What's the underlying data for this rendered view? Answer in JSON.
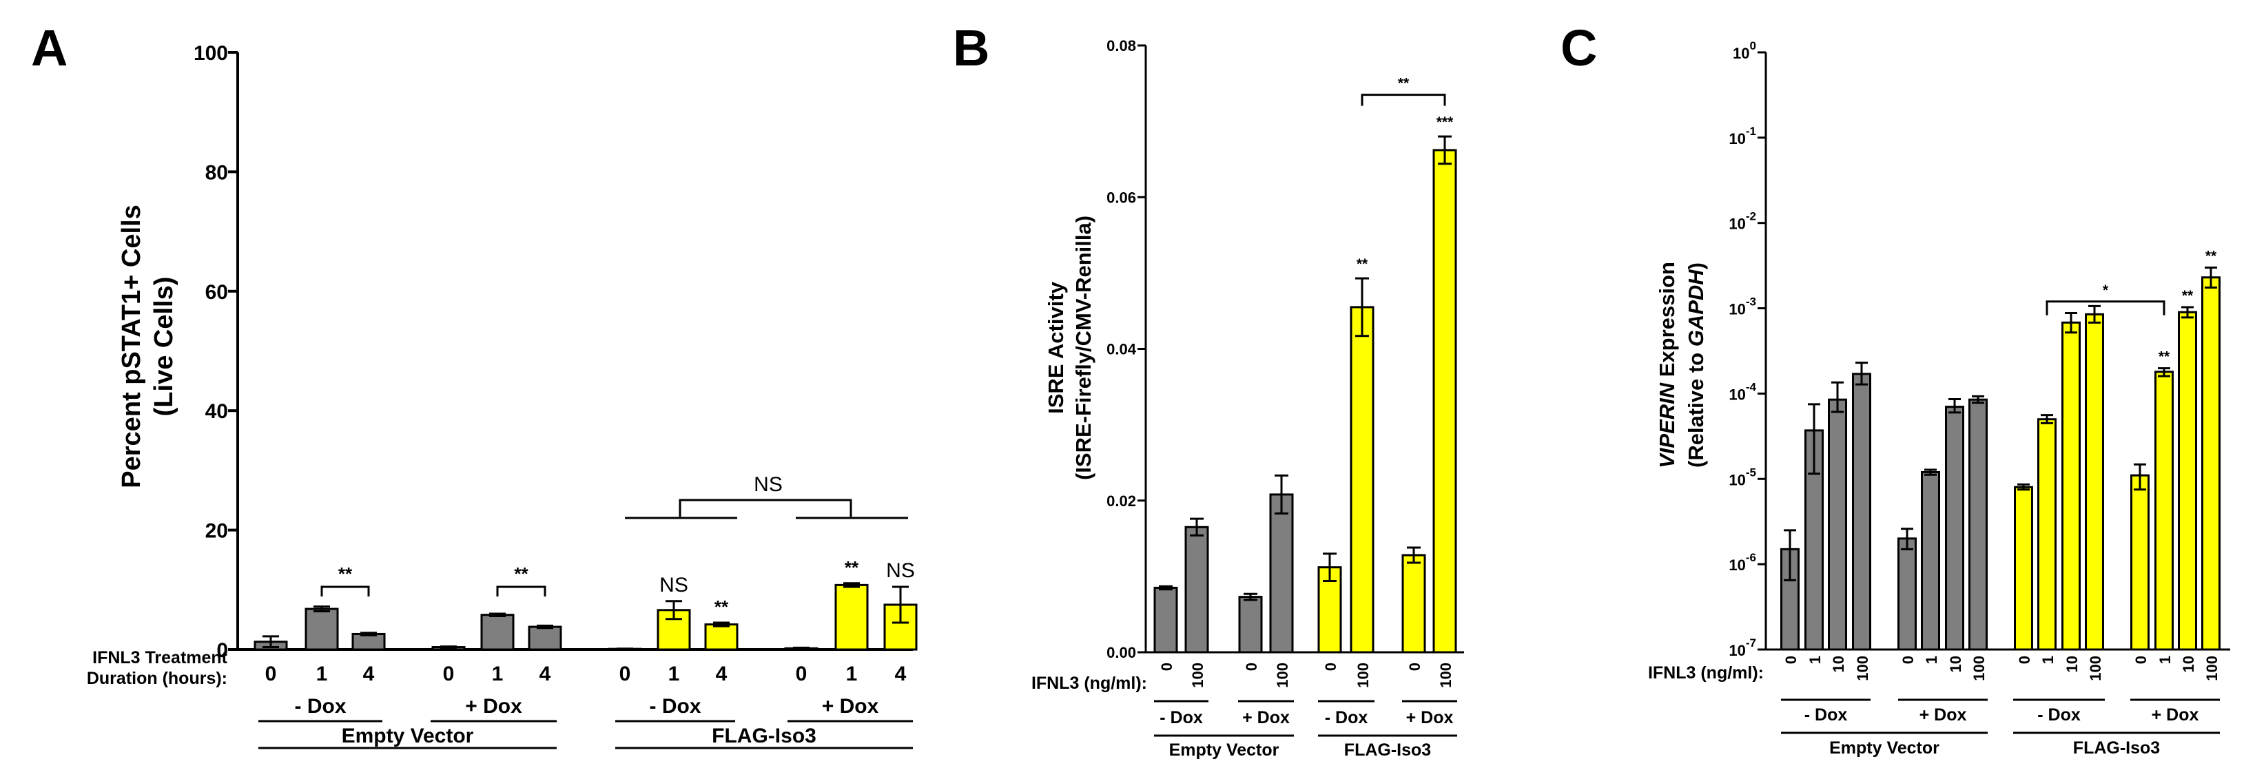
{
  "colors": {
    "empty": "#7f7f7f",
    "flag": "#ffff00",
    "axis": "#000000"
  },
  "chart_data": [
    {
      "panel": "A",
      "type": "bar",
      "ylabel_line1": "Percent pSTAT1+ Cells",
      "ylabel_line2": "(Live Cells)",
      "ylim": [
        0,
        100
      ],
      "yticks": [
        "0",
        "20",
        "40",
        "60",
        "80",
        "100"
      ],
      "x_title_line1": "IFNL3 Treatment",
      "x_title_line2": "Duration (hours):",
      "categories": [
        "0",
        "1",
        "4",
        "0",
        "1",
        "4",
        "0",
        "1",
        "4",
        "0",
        "1",
        "4"
      ],
      "values": [
        1.3,
        6.8,
        2.6,
        0.4,
        5.8,
        3.8,
        0.1,
        6.6,
        4.2,
        0.2,
        10.8,
        7.5
      ],
      "errors": [
        0.9,
        0.4,
        0.2,
        0.1,
        0.2,
        0.2,
        0.05,
        1.5,
        0.3,
        0.1,
        0.3,
        3.0
      ],
      "colors": [
        "empty",
        "empty",
        "empty",
        "empty",
        "empty",
        "empty",
        "flag",
        "flag",
        "flag",
        "flag",
        "flag",
        "flag"
      ],
      "bar_labels": [
        "",
        "",
        "",
        "",
        "",
        "",
        "",
        "NS",
        "**",
        "",
        "**",
        "NS"
      ],
      "subgroups": [
        "- Dox",
        "+ Dox",
        "- Dox",
        "+ Dox"
      ],
      "groups": [
        "Empty  Vector",
        "FLAG-Iso3"
      ],
      "comparisons": [
        {
          "from": 1,
          "to": 2,
          "label": "**",
          "value": 10.5
        },
        {
          "from": 4,
          "to": 5,
          "label": "**",
          "value": 10.5
        }
      ],
      "group_comparison": {
        "label": "NS"
      }
    },
    {
      "panel": "B",
      "type": "bar",
      "ylabel_line1": "ISRE Activity",
      "ylabel_line2": "(ISRE-Firefly/CMV-Renilla)",
      "ylim": [
        0,
        0.08
      ],
      "yticks": [
        "0.00",
        "0.02",
        "0.04",
        "0.06",
        "0.08"
      ],
      "x_title": "IFNL3  (ng/ml):",
      "categories": [
        "0",
        "100",
        "0",
        "100",
        "0",
        "100",
        "0",
        "100"
      ],
      "values": [
        0.0085,
        0.0165,
        0.0073,
        0.0208,
        0.0112,
        0.0455,
        0.0128,
        0.0662
      ],
      "errors": [
        0.0002,
        0.0011,
        0.0004,
        0.0025,
        0.0018,
        0.0038,
        0.001,
        0.0018
      ],
      "colors": [
        "empty",
        "empty",
        "empty",
        "empty",
        "flag",
        "flag",
        "flag",
        "flag"
      ],
      "bar_labels": [
        "",
        "",
        "",
        "",
        "",
        "**",
        "",
        "***"
      ],
      "subgroups": [
        "- Dox",
        "+ Dox",
        "- Dox",
        "+ Dox"
      ],
      "groups": [
        "Empty Vector",
        "FLAG-Iso3"
      ],
      "comparisons": [
        {
          "from": 5,
          "to": 7,
          "label": "**",
          "value": 0.0735
        }
      ]
    },
    {
      "panel": "C",
      "type": "bar",
      "yscale": "log",
      "ylabel_line1_italic": "VIPERIN",
      "ylabel_line1_rest": " Expression",
      "ylabel_line2_pre": "(Relative to ",
      "ylabel_line2_italic": "GAPDH",
      "ylabel_line2_post": ")",
      "ylim": [
        1e-07,
        1
      ],
      "yticks": [
        {
          "base": "10",
          "exp": "-7"
        },
        {
          "base": "10",
          "exp": "-6"
        },
        {
          "base": "10",
          "exp": "-5"
        },
        {
          "base": "10",
          "exp": "-4"
        },
        {
          "base": "10",
          "exp": "-3"
        },
        {
          "base": "10",
          "exp": "-2"
        },
        {
          "base": "10",
          "exp": "-1"
        },
        {
          "base": "10",
          "exp": "0"
        }
      ],
      "x_title": "IFNL3  (ng/ml):",
      "categories": [
        "0",
        "1",
        "10",
        "100",
        "0",
        "1",
        "10",
        "100",
        "0",
        "1",
        "10",
        "100",
        "0",
        "1",
        "10",
        "100"
      ],
      "values": [
        1.5e-06,
        3.7e-05,
        8.5e-05,
        0.00017,
        2e-06,
        1.2e-05,
        7e-05,
        8.5e-05,
        8e-06,
        5e-05,
        0.00068,
        0.00085,
        1.1e-05,
        0.00018,
        0.0009,
        0.0023
      ],
      "err_low": [
        6.5e-07,
        1.15e-05,
        6.1e-05,
        0.000128,
        1.5e-06,
        1.12e-05,
        6e-05,
        7.8e-05,
        7.5e-06,
        4.5e-05,
        0.00052,
        0.00068,
        7.5e-06,
        0.00016,
        0.00078,
        0.00175
      ],
      "err_high": [
        2.5e-06,
        7.5e-05,
        0.000135,
        0.00023,
        2.6e-06,
        1.28e-05,
        8.6e-05,
        9.3e-05,
        8.6e-06,
        5.6e-05,
        0.00088,
        0.00106,
        1.48e-05,
        0.000198,
        0.00103,
        0.003
      ],
      "colors": [
        "empty",
        "empty",
        "empty",
        "empty",
        "empty",
        "empty",
        "empty",
        "empty",
        "flag",
        "flag",
        "flag",
        "flag",
        "flag",
        "flag",
        "flag",
        "flag"
      ],
      "bar_labels": [
        "",
        "",
        "",
        "",
        "",
        "",
        "",
        "",
        "",
        "",
        "",
        "",
        "",
        "**",
        "**",
        "**"
      ],
      "subgroups": [
        "- Dox",
        "+ Dox",
        "- Dox",
        "+ Dox"
      ],
      "groups": [
        "Empty Vector",
        "FLAG-Iso3"
      ],
      "comparisons": [
        {
          "from": 9,
          "to": 13,
          "label": "*",
          "value": 0.0012
        }
      ]
    }
  ]
}
